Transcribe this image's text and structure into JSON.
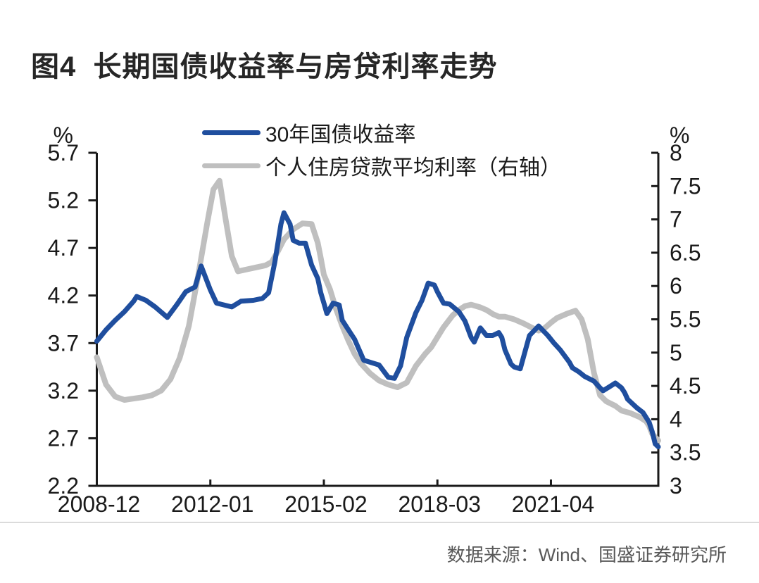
{
  "title": "图4  长期国债收益率与房贷利率走势",
  "source": "数据来源：Wind、国盛证券研究所",
  "colors": {
    "bond_line": "#1F4E9E",
    "mortgage_line": "#BFBFBF",
    "axis": "#1A1A1A",
    "tick_label": "#1A1A1A",
    "title_text": "#262626",
    "source_text": "#595959",
    "divider": "#DBDBDB",
    "background": "#FFFFFF"
  },
  "legend": {
    "items": [
      {
        "label": "30年国债收益率",
        "color": "#1F4E9E"
      },
      {
        "label": "个人住房贷款平均利率（右轴）",
        "color": "#BFBFBF"
      }
    ]
  },
  "chart_data": {
    "type": "line",
    "title": "图4  长期国债收益率与房贷利率走势",
    "grid": false,
    "legend_position": "top-center-inside",
    "x_range": [
      "2008-12",
      "2024-03"
    ],
    "x_tick_labels": [
      "2008-12",
      "2012-01",
      "2015-02",
      "2018-03",
      "2021-04"
    ],
    "left_axis": {
      "unit": "%",
      "range": [
        2.2,
        5.7
      ],
      "ticks": [
        5.7,
        5.2,
        4.7,
        4.2,
        3.7,
        3.2,
        2.7,
        2.2
      ]
    },
    "right_axis": {
      "unit": "%",
      "range": [
        3,
        8
      ],
      "ticks": [
        8,
        7.5,
        7,
        6.5,
        6,
        5.5,
        5,
        4.5,
        4,
        3.5,
        3
      ]
    },
    "series": [
      {
        "name": "30年国债收益率",
        "axis": "left",
        "color": "#1F4E9E",
        "stroke_width": 7,
        "points": [
          [
            "2008-12",
            3.72
          ],
          [
            "2009-03",
            3.84
          ],
          [
            "2009-06",
            3.94
          ],
          [
            "2009-09",
            4.03
          ],
          [
            "2009-12",
            4.14
          ],
          [
            "2010-01",
            4.19
          ],
          [
            "2010-04",
            4.15
          ],
          [
            "2010-07",
            4.08
          ],
          [
            "2010-11",
            3.97
          ],
          [
            "2011-02",
            4.1
          ],
          [
            "2011-05",
            4.24
          ],
          [
            "2011-08",
            4.29
          ],
          [
            "2011-10",
            4.51
          ],
          [
            "2012-01",
            4.26
          ],
          [
            "2012-03",
            4.12
          ],
          [
            "2012-08",
            4.08
          ],
          [
            "2012-11",
            4.14
          ],
          [
            "2013-03",
            4.15
          ],
          [
            "2013-06",
            4.17
          ],
          [
            "2013-08",
            4.23
          ],
          [
            "2013-10",
            4.55
          ],
          [
            "2013-12",
            4.95
          ],
          [
            "2014-01",
            5.07
          ],
          [
            "2014-03",
            4.95
          ],
          [
            "2014-04",
            4.78
          ],
          [
            "2014-06",
            4.75
          ],
          [
            "2014-08",
            4.75
          ],
          [
            "2014-10",
            4.52
          ],
          [
            "2014-12",
            4.38
          ],
          [
            "2015-01",
            4.23
          ],
          [
            "2015-02",
            4.12
          ],
          [
            "2015-03",
            4.01
          ],
          [
            "2015-05",
            4.12
          ],
          [
            "2015-07",
            4.1
          ],
          [
            "2015-08",
            3.94
          ],
          [
            "2015-10",
            3.84
          ],
          [
            "2015-12",
            3.74
          ],
          [
            "2016-03",
            3.52
          ],
          [
            "2016-06",
            3.49
          ],
          [
            "2016-08",
            3.47
          ],
          [
            "2016-11",
            3.34
          ],
          [
            "2017-01",
            3.33
          ],
          [
            "2017-03",
            3.46
          ],
          [
            "2017-05",
            3.76
          ],
          [
            "2017-08",
            4.02
          ],
          [
            "2017-10",
            4.15
          ],
          [
            "2017-12",
            4.33
          ],
          [
            "2018-02",
            4.31
          ],
          [
            "2018-03",
            4.24
          ],
          [
            "2018-05",
            4.12
          ],
          [
            "2018-07",
            4.11
          ],
          [
            "2018-10",
            4.03
          ],
          [
            "2018-12",
            3.93
          ],
          [
            "2019-02",
            3.76
          ],
          [
            "2019-03",
            3.71
          ],
          [
            "2019-05",
            3.86
          ],
          [
            "2019-07",
            3.78
          ],
          [
            "2019-09",
            3.78
          ],
          [
            "2019-11",
            3.81
          ],
          [
            "2019-12",
            3.76
          ],
          [
            "2020-01",
            3.63
          ],
          [
            "2020-03",
            3.48
          ],
          [
            "2020-04",
            3.45
          ],
          [
            "2020-06",
            3.43
          ],
          [
            "2020-09",
            3.78
          ],
          [
            "2020-12",
            3.88
          ],
          [
            "2021-03",
            3.78
          ],
          [
            "2021-05",
            3.7
          ],
          [
            "2021-07",
            3.63
          ],
          [
            "2021-10",
            3.5
          ],
          [
            "2021-11",
            3.44
          ],
          [
            "2022-01",
            3.4
          ],
          [
            "2022-03",
            3.35
          ],
          [
            "2022-06",
            3.3
          ],
          [
            "2022-08",
            3.23
          ],
          [
            "2022-09",
            3.2
          ],
          [
            "2022-11",
            3.24
          ],
          [
            "2023-01",
            3.28
          ],
          [
            "2023-03",
            3.23
          ],
          [
            "2023-04",
            3.18
          ],
          [
            "2023-05",
            3.11
          ],
          [
            "2023-08",
            3.02
          ],
          [
            "2023-10",
            2.97
          ],
          [
            "2023-12",
            2.87
          ],
          [
            "2024-01",
            2.77
          ],
          [
            "2024-02",
            2.64
          ],
          [
            "2024-03",
            2.61
          ]
        ]
      },
      {
        "name": "个人住房贷款平均利率（右轴）",
        "axis": "right",
        "color": "#BFBFBF",
        "stroke_width": 8,
        "points": [
          [
            "2008-12",
            4.93
          ],
          [
            "2009-03",
            4.52
          ],
          [
            "2009-06",
            4.34
          ],
          [
            "2009-09",
            4.29
          ],
          [
            "2009-12",
            4.31
          ],
          [
            "2010-03",
            4.33
          ],
          [
            "2010-06",
            4.36
          ],
          [
            "2010-09",
            4.43
          ],
          [
            "2010-12",
            4.6
          ],
          [
            "2011-03",
            4.92
          ],
          [
            "2011-06",
            5.4
          ],
          [
            "2011-09",
            6.15
          ],
          [
            "2011-12",
            6.95
          ],
          [
            "2012-02",
            7.45
          ],
          [
            "2012-04",
            7.58
          ],
          [
            "2012-06",
            7.0
          ],
          [
            "2012-08",
            6.45
          ],
          [
            "2012-10",
            6.22
          ],
          [
            "2013-01",
            6.25
          ],
          [
            "2013-04",
            6.28
          ],
          [
            "2013-07",
            6.31
          ],
          [
            "2013-09",
            6.36
          ],
          [
            "2013-11",
            6.52
          ],
          [
            "2014-01",
            6.7
          ],
          [
            "2014-04",
            6.85
          ],
          [
            "2014-07",
            6.94
          ],
          [
            "2014-10",
            6.93
          ],
          [
            "2014-12",
            6.65
          ],
          [
            "2015-01",
            6.42
          ],
          [
            "2015-02",
            6.17
          ],
          [
            "2015-04",
            5.95
          ],
          [
            "2015-06",
            5.65
          ],
          [
            "2015-08",
            5.4
          ],
          [
            "2015-10",
            5.18
          ],
          [
            "2015-12",
            4.98
          ],
          [
            "2016-02",
            4.84
          ],
          [
            "2016-05",
            4.69
          ],
          [
            "2016-08",
            4.58
          ],
          [
            "2016-11",
            4.52
          ],
          [
            "2017-02",
            4.48
          ],
          [
            "2017-05",
            4.55
          ],
          [
            "2017-08",
            4.8
          ],
          [
            "2017-11",
            4.98
          ],
          [
            "2018-01",
            5.08
          ],
          [
            "2018-05",
            5.38
          ],
          [
            "2018-08",
            5.56
          ],
          [
            "2018-10",
            5.64
          ],
          [
            "2018-12",
            5.7
          ],
          [
            "2019-02",
            5.72
          ],
          [
            "2019-05",
            5.68
          ],
          [
            "2019-07",
            5.64
          ],
          [
            "2019-09",
            5.58
          ],
          [
            "2019-11",
            5.54
          ],
          [
            "2020-01",
            5.54
          ],
          [
            "2020-04",
            5.5
          ],
          [
            "2020-07",
            5.44
          ],
          [
            "2020-10",
            5.37
          ],
          [
            "2020-12",
            5.33
          ],
          [
            "2021-02",
            5.37
          ],
          [
            "2021-04",
            5.45
          ],
          [
            "2021-06",
            5.52
          ],
          [
            "2021-09",
            5.58
          ],
          [
            "2021-12",
            5.63
          ],
          [
            "2022-02",
            5.5
          ],
          [
            "2022-04",
            5.2
          ],
          [
            "2022-06",
            4.7
          ],
          [
            "2022-08",
            4.36
          ],
          [
            "2022-10",
            4.27
          ],
          [
            "2023-01",
            4.2
          ],
          [
            "2023-03",
            4.13
          ],
          [
            "2023-06",
            4.09
          ],
          [
            "2023-09",
            4.03
          ],
          [
            "2023-11",
            3.97
          ],
          [
            "2023-12",
            3.9
          ],
          [
            "2024-01",
            3.78
          ],
          [
            "2024-03",
            3.68
          ]
        ]
      }
    ]
  }
}
